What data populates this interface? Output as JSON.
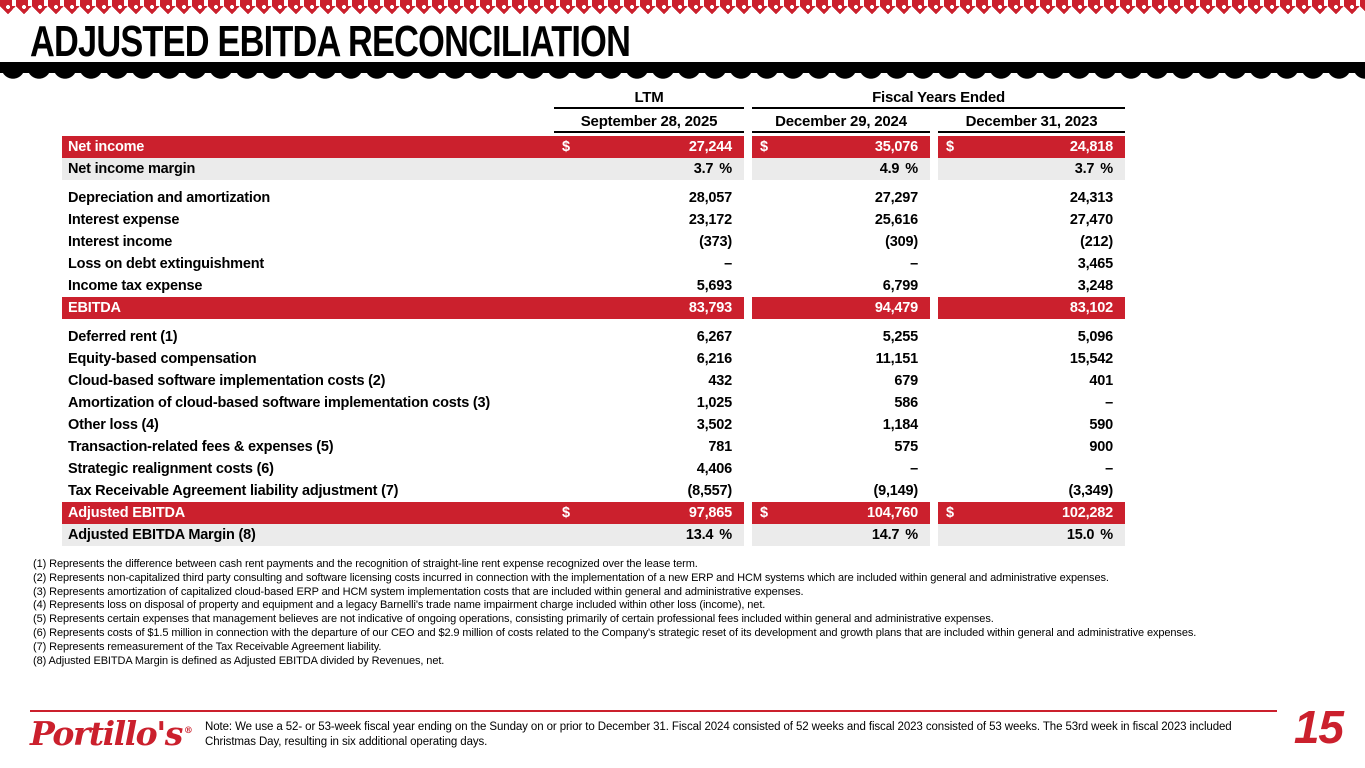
{
  "slide": {
    "title": "ADJUSTED EBITDA RECONCILIATION",
    "page_number": "15",
    "logo_text": "Portillo's",
    "note": "Note: We use a 52- or 53-week fiscal year ending on the Sunday on or prior to December 31. Fiscal 2024 consisted of 52 weeks and fiscal 2023 consisted of 53 weeks. The 53rd week in fiscal 2023 included Christmas Day, resulting in six additional operating days.",
    "colors": {
      "brand_red": "#cb202d",
      "highlight_row_red": "#cb202d",
      "margin_row_gray": "#ebebeb",
      "text_black": "#000000"
    }
  },
  "table": {
    "groups": [
      "LTM",
      "Fiscal Years Ended"
    ],
    "columns": [
      "September 28, 2025",
      "December 29, 2024",
      "December 31, 2023"
    ],
    "rows": [
      {
        "label": "Net income",
        "style": "red",
        "prefix": "$",
        "values": [
          "27,244",
          "35,076",
          "24,818"
        ]
      },
      {
        "label": "Net income margin",
        "style": "gray",
        "suffix": "%",
        "values": [
          "3.7",
          "4.9",
          "3.7"
        ]
      },
      {
        "type": "gap"
      },
      {
        "label": "Depreciation and amortization",
        "values": [
          "28,057",
          "27,297",
          "24,313"
        ]
      },
      {
        "label": "Interest expense",
        "values": [
          "23,172",
          "25,616",
          "27,470"
        ]
      },
      {
        "label": "Interest income",
        "values": [
          "(373)",
          "(309)",
          "(212)"
        ]
      },
      {
        "label": "Loss on debt extinguishment",
        "values": [
          "–",
          "–",
          "3,465"
        ]
      },
      {
        "label": "Income tax expense",
        "values": [
          "5,693",
          "6,799",
          "3,248"
        ]
      },
      {
        "label": "EBITDA",
        "style": "red",
        "values": [
          "83,793",
          "94,479",
          "83,102"
        ]
      },
      {
        "type": "gap"
      },
      {
        "label": "Deferred rent (1)",
        "values": [
          "6,267",
          "5,255",
          "5,096"
        ]
      },
      {
        "label": "Equity-based compensation",
        "values": [
          "6,216",
          "11,151",
          "15,542"
        ]
      },
      {
        "label": "Cloud-based software implementation costs (2)",
        "values": [
          "432",
          "679",
          "401"
        ]
      },
      {
        "label": "Amortization of cloud-based software implementation costs (3)",
        "values": [
          "1,025",
          "586",
          "–"
        ]
      },
      {
        "label": "Other loss (4)",
        "values": [
          "3,502",
          "1,184",
          "590"
        ]
      },
      {
        "label": "Transaction-related fees & expenses (5)",
        "values": [
          "781",
          "575",
          "900"
        ]
      },
      {
        "label": "Strategic realignment costs (6)",
        "values": [
          "4,406",
          "–",
          "–"
        ]
      },
      {
        "label": "Tax Receivable Agreement liability adjustment (7)",
        "values": [
          "(8,557)",
          "(9,149)",
          "(3,349)"
        ]
      },
      {
        "label": "Adjusted EBITDA",
        "style": "red",
        "prefix": "$",
        "values": [
          "97,865",
          "104,760",
          "102,282"
        ]
      },
      {
        "label": "Adjusted EBITDA Margin (8)",
        "style": "gray",
        "suffix": "%",
        "values": [
          "13.4",
          "14.7",
          "15.0"
        ]
      }
    ]
  },
  "footnotes": [
    "(1) Represents the difference between cash rent payments and the recognition of straight-line rent expense recognized over the lease term.",
    "(2) Represents non-capitalized third party consulting and software licensing costs incurred in connection with the implementation of a new ERP and HCM systems which are included within general and administrative expenses.",
    "(3) Represents amortization of capitalized cloud-based ERP and HCM system implementation costs that are included within general and administrative expenses.",
    "(4) Represents loss on disposal of property and equipment and a legacy Barnelli's trade name impairment charge included within other loss (income), net.",
    "(5) Represents certain expenses that management believes are not indicative of ongoing operations, consisting primarily of certain professional fees included within general and administrative expenses.",
    "(6) Represents costs of $1.5 million in connection with the departure of our CEO and $2.9 million of costs related to the Company's strategic reset of its development and growth plans that are included within general and administrative expenses.",
    "(7) Represents remeasurement of the Tax Receivable Agreement liability.",
    "(8) Adjusted EBITDA Margin is defined as Adjusted EBITDA divided by Revenues, net."
  ]
}
